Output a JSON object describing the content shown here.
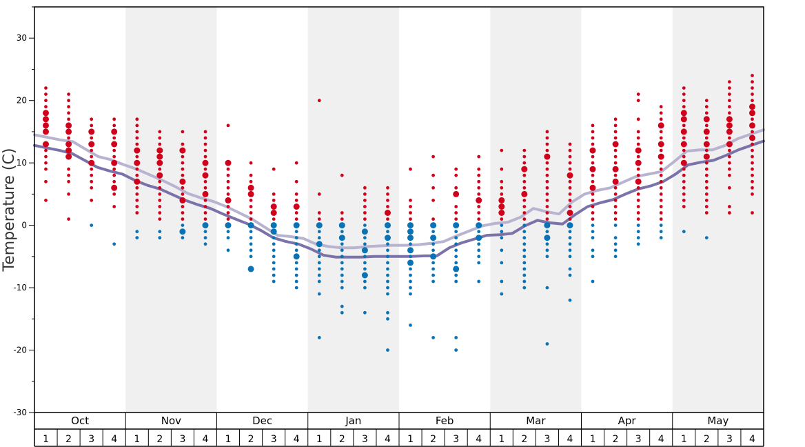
{
  "chart_data": {
    "type": "scatter",
    "ylabel": "Temperature (C)",
    "ylim": [
      -30,
      35
    ],
    "yticks": [
      -30,
      -20,
      -10,
      0,
      10,
      20,
      30
    ],
    "months": [
      "Oct",
      "Nov",
      "Dec",
      "Jan",
      "Feb",
      "Mar",
      "Apr",
      "May"
    ],
    "week_labels": [
      "1",
      "2",
      "3",
      "4"
    ],
    "colors": {
      "warm_points": "#d0021b",
      "cold_points": "#0a73b5",
      "line_high": "#b7b3d0",
      "line_low": "#7a72a8",
      "shade": "#f0f0f0"
    },
    "series": [
      {
        "name": "",
        "color": "#b7b3d0",
        "values": [
          14.5,
          14.1,
          13.7,
          13.4,
          12.2,
          11.0,
          10.5,
          9.7,
          9.0,
          8.1,
          7.2,
          6.2,
          5.1,
          4.4,
          3.8,
          3.0,
          2.0,
          1.0,
          -0.3,
          -1.6,
          -1.8,
          -2.1,
          -3.0,
          -3.4,
          -3.6,
          -3.6,
          -3.4,
          -3.3,
          -3.2,
          -3.2,
          -3.1,
          -2.9,
          -2.6,
          -1.7,
          -0.9,
          -0.1,
          0.3,
          0.5,
          1.3,
          2.7,
          2.2,
          1.8,
          3.7,
          5.0,
          5.6,
          6.0,
          6.9,
          7.8,
          8.2,
          8.6,
          10.2,
          11.9,
          12.1,
          12.1,
          12.8,
          13.9,
          14.6,
          15.3
        ]
      },
      {
        "name": "",
        "color": "#7a72a8",
        "values": [
          12.8,
          12.4,
          12.0,
          11.5,
          10.4,
          9.3,
          8.7,
          8.2,
          7.2,
          6.4,
          5.8,
          4.9,
          4.0,
          3.3,
          2.7,
          1.8,
          1.0,
          0.2,
          -0.8,
          -2.0,
          -2.6,
          -3.0,
          -3.8,
          -4.8,
          -5.1,
          -5.1,
          -5.1,
          -5.0,
          -5.0,
          -5.0,
          -5.0,
          -4.9,
          -4.9,
          -3.6,
          -2.8,
          -2.2,
          -1.6,
          -1.5,
          -1.3,
          -0.1,
          0.8,
          0.4,
          0.2,
          1.7,
          3.0,
          3.6,
          4.1,
          5.0,
          5.8,
          6.3,
          7.0,
          8.2,
          9.7,
          10.1,
          10.4,
          11.2,
          12.1,
          12.8,
          13.5
        ]
      }
    ],
    "dots": [
      {
        "week": 1,
        "temps": [
          4,
          7,
          9,
          10,
          11,
          12,
          13,
          15,
          16,
          17,
          18,
          19,
          20,
          21,
          22
        ],
        "big": [
          13,
          15,
          16,
          17,
          18
        ]
      },
      {
        "week": 2,
        "temps": [
          1,
          5,
          7,
          8,
          9,
          11,
          12,
          13,
          14,
          15,
          16,
          17,
          18,
          19,
          20,
          21
        ],
        "big": [
          11,
          12,
          13,
          15,
          16
        ]
      },
      {
        "week": 3,
        "temps": [
          0,
          4,
          6,
          7,
          8,
          9,
          10,
          11,
          12,
          13,
          14,
          15,
          16,
          17
        ],
        "big": [
          10,
          13,
          15
        ]
      },
      {
        "week": 4,
        "temps": [
          -3,
          3,
          5,
          6,
          7,
          8,
          9,
          10,
          11,
          12,
          13,
          14,
          15,
          16,
          17
        ],
        "big": [
          6,
          10,
          13,
          15
        ]
      },
      {
        "week": 5,
        "temps": [
          -2,
          -1,
          2,
          3,
          4,
          5,
          6,
          7,
          8,
          9,
          10,
          11,
          12,
          13,
          14,
          15,
          16,
          17
        ],
        "big": [
          7,
          10,
          12
        ]
      },
      {
        "week": 6,
        "temps": [
          -2,
          -1,
          1,
          2,
          3,
          4,
          5,
          6,
          7,
          8,
          9,
          10,
          11,
          12,
          13,
          14,
          15
        ],
        "big": [
          8,
          10,
          11,
          12
        ]
      },
      {
        "week": 7,
        "temps": [
          -2,
          -1,
          0,
          1,
          2,
          3,
          4,
          5,
          6,
          7,
          8,
          9,
          10,
          11,
          12,
          13,
          15
        ],
        "big": [
          -1,
          4,
          7,
          12
        ]
      },
      {
        "week": 8,
        "temps": [
          -3,
          -2,
          -1,
          0,
          1,
          2,
          3,
          4,
          5,
          6,
          7,
          8,
          9,
          10,
          11,
          12,
          13,
          14,
          15
        ],
        "big": [
          0,
          5,
          8,
          10
        ]
      },
      {
        "week": 9,
        "temps": [
          -4,
          -2,
          -1,
          0,
          1,
          2,
          3,
          4,
          5,
          6,
          7,
          8,
          9,
          10,
          16
        ],
        "big": [
          0,
          4,
          10
        ]
      },
      {
        "week": 10,
        "temps": [
          -7,
          -5,
          -4,
          -3,
          -2,
          -1,
          0,
          1,
          2,
          3,
          4,
          5,
          6,
          7,
          8,
          10
        ],
        "big": [
          -7,
          0,
          5,
          6
        ]
      },
      {
        "week": 11,
        "temps": [
          -9,
          -8,
          -7,
          -6,
          -5,
          -4,
          -3,
          -2,
          -1,
          0,
          1,
          2,
          3,
          4,
          5,
          9
        ],
        "big": [
          -1,
          0,
          2,
          3
        ]
      },
      {
        "week": 12,
        "temps": [
          -10,
          -9,
          -8,
          -7,
          -6,
          -5,
          -4,
          -3,
          -2,
          -1,
          0,
          1,
          2,
          3,
          4,
          5,
          7,
          10
        ],
        "big": [
          -5,
          0,
          3
        ]
      },
      {
        "week": 13,
        "temps": [
          -18,
          -11,
          -9,
          -8,
          -7,
          -6,
          -5,
          -4,
          -3,
          -2,
          -1,
          0,
          1,
          2,
          5,
          20
        ],
        "big": [
          -3,
          0
        ]
      },
      {
        "week": 14,
        "temps": [
          -14,
          -13,
          -10,
          -9,
          -8,
          -7,
          -6,
          -5,
          -4,
          -3,
          -2,
          -1,
          0,
          1,
          2,
          8
        ],
        "big": [
          -2,
          0
        ]
      },
      {
        "week": 15,
        "temps": [
          -14,
          -10,
          -9,
          -8,
          -7,
          -6,
          -5,
          -4,
          -3,
          -2,
          -1,
          0,
          1,
          2,
          3,
          4,
          5,
          6
        ],
        "big": [
          -8,
          -4,
          -1
        ]
      },
      {
        "week": 16,
        "temps": [
          -20,
          -15,
          -14,
          -11,
          -10,
          -9,
          -8,
          -7,
          -6,
          -5,
          -4,
          -3,
          -2,
          -1,
          0,
          1,
          2,
          3,
          4,
          5,
          6
        ],
        "big": [
          -2,
          0,
          2
        ]
      },
      {
        "week": 17,
        "temps": [
          -16,
          -11,
          -10,
          -9,
          -8,
          -7,
          -6,
          -5,
          -4,
          -3,
          -2,
          -1,
          0,
          1,
          2,
          3,
          4,
          9
        ],
        "big": [
          -6,
          -4,
          -2,
          -1,
          0
        ]
      },
      {
        "week": 18,
        "temps": [
          -18,
          -9,
          -8,
          -7,
          -6,
          -5,
          -4,
          -3,
          -2,
          -1,
          0,
          1,
          4,
          6,
          8,
          11
        ],
        "big": [
          -5,
          -2,
          0
        ]
      },
      {
        "week": 19,
        "temps": [
          -20,
          -18,
          -9,
          -8,
          -7,
          -6,
          -5,
          -4,
          -3,
          -2,
          -1,
          0,
          1,
          2,
          3,
          5,
          6,
          8,
          9
        ],
        "big": [
          -7,
          0,
          5
        ]
      },
      {
        "week": 20,
        "temps": [
          -9,
          -6,
          -5,
          -4,
          -3,
          -2,
          -1,
          0,
          1,
          2,
          3,
          4,
          5,
          6,
          7,
          8,
          9,
          11
        ],
        "big": [
          -2,
          0,
          4
        ]
      },
      {
        "week": 21,
        "temps": [
          -11,
          -9,
          -6,
          -4,
          -2,
          -1,
          0,
          1,
          2,
          3,
          4,
          5,
          6,
          7,
          9,
          12
        ],
        "big": [
          2,
          3,
          4
        ]
      },
      {
        "week": 22,
        "temps": [
          -10,
          -9,
          -8,
          -7,
          -6,
          -5,
          -4,
          -3,
          -2,
          -1,
          0,
          1,
          2,
          3,
          4,
          5,
          6,
          7,
          8,
          9,
          10,
          11,
          12
        ],
        "big": [
          5,
          9
        ]
      },
      {
        "week": 23,
        "temps": [
          -19,
          -10,
          -5,
          -4,
          -3,
          -2,
          -1,
          0,
          1,
          2,
          3,
          4,
          5,
          6,
          7,
          8,
          9,
          10,
          11,
          12,
          13,
          14,
          15
        ],
        "big": [
          -2,
          0,
          11
        ]
      },
      {
        "week": 24,
        "temps": [
          -12,
          -8,
          -7,
          -5,
          -4,
          -3,
          -2,
          -1,
          0,
          1,
          2,
          3,
          4,
          5,
          6,
          7,
          8,
          9,
          10,
          11,
          12,
          13
        ],
        "big": [
          0,
          2,
          8
        ]
      },
      {
        "week": 25,
        "temps": [
          -9,
          -5,
          -4,
          -2,
          -1,
          0,
          1,
          2,
          3,
          4,
          5,
          6,
          7,
          8,
          9,
          10,
          11,
          12,
          13,
          14,
          15,
          16
        ],
        "big": [
          6,
          9,
          12
        ]
      },
      {
        "week": 26,
        "temps": [
          -5,
          -4,
          -3,
          -2,
          0,
          1,
          2,
          3,
          4,
          5,
          6,
          7,
          8,
          9,
          10,
          11,
          12,
          13,
          14,
          15,
          16,
          17
        ],
        "big": [
          7,
          9,
          13
        ]
      },
      {
        "week": 27,
        "temps": [
          -3,
          -2,
          -1,
          0,
          1,
          2,
          3,
          4,
          5,
          6,
          7,
          8,
          9,
          10,
          11,
          12,
          13,
          14,
          15,
          17,
          20,
          21
        ],
        "big": [
          7,
          10,
          12
        ]
      },
      {
        "week": 28,
        "temps": [
          -2,
          -1,
          0,
          1,
          2,
          3,
          4,
          5,
          6,
          7,
          8,
          9,
          10,
          11,
          12,
          13,
          14,
          15,
          16,
          17,
          18,
          19
        ],
        "big": [
          11,
          13,
          16
        ]
      },
      {
        "week": 29,
        "temps": [
          -1,
          3,
          4,
          5,
          6,
          7,
          8,
          9,
          10,
          11,
          12,
          13,
          14,
          15,
          16,
          17,
          18,
          19,
          20,
          21,
          22
        ],
        "big": [
          10,
          13,
          15,
          17,
          18
        ]
      },
      {
        "week": 30,
        "temps": [
          -2,
          2,
          3,
          4,
          5,
          6,
          7,
          8,
          9,
          10,
          11,
          12,
          13,
          14,
          15,
          16,
          17,
          18,
          19,
          20
        ],
        "big": [
          11,
          13,
          15,
          17
        ]
      },
      {
        "week": 31,
        "temps": [
          2,
          3,
          6,
          8,
          9,
          10,
          11,
          12,
          13,
          14,
          15,
          16,
          17,
          18,
          19,
          20,
          21,
          22,
          23
        ],
        "big": [
          13,
          15,
          16,
          17
        ]
      },
      {
        "week": 32,
        "temps": [
          2,
          5,
          6,
          7,
          8,
          9,
          10,
          11,
          12,
          13,
          14,
          15,
          16,
          17,
          18,
          19,
          20,
          21,
          22,
          23,
          24
        ],
        "big": [
          14,
          16,
          18,
          19
        ]
      }
    ]
  }
}
